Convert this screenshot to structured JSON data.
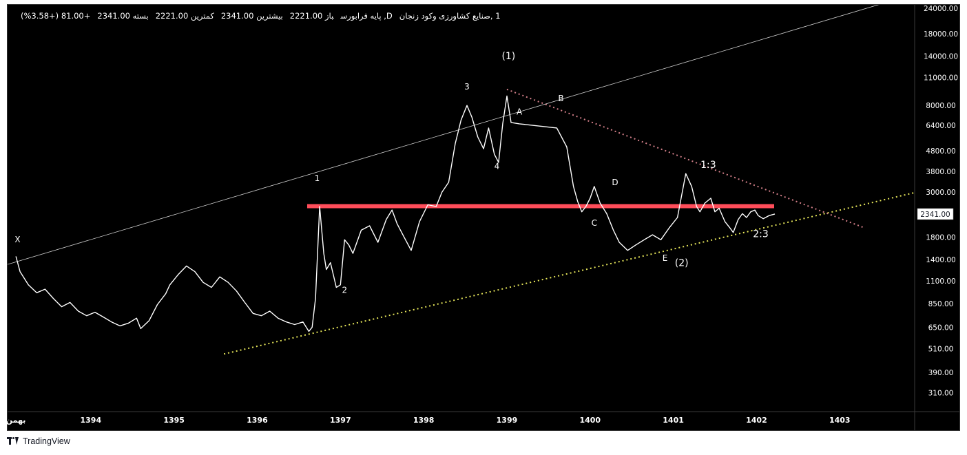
{
  "header": {
    "symbol": "1 ,صنایع کشاورزی وکود زنجان",
    "exchange": "D, پایه فرابورس",
    "open_label": "باز",
    "open": "2221.00",
    "high_label": "بیشترین",
    "high": "2341.00",
    "low_label": "کمترین",
    "low": "2221.00",
    "close_label": "بسته",
    "close": "2341.00",
    "change": "+81.00 (+3.58%)"
  },
  "branding": {
    "logo_text": "TradingView"
  },
  "colors": {
    "background": "#000000",
    "price": "#ffffff",
    "resistance": "#ff4d5a",
    "support_dotted": "#e6e65a",
    "downtrend_dotted": "#d4808a",
    "channel_line": "#cfcfcf"
  },
  "chart_data": {
    "type": "line",
    "scale": "log",
    "ylim": [
      250,
      25000
    ],
    "xlim": [
      1393.0,
      1403.9
    ],
    "y_ticks": [
      "24000.00",
      "18000.00",
      "14000.00",
      "11000.00",
      "8000.00",
      "6400.00",
      "4800.00",
      "3800.00",
      "3000.00",
      "2341.00",
      "1800.00",
      "1400.00",
      "1100.00",
      "850.00",
      "650.00",
      "510.00",
      "390.00",
      "310.00"
    ],
    "y_tick_values": [
      24000,
      18000,
      14000,
      11000,
      8000,
      6400,
      4800,
      3800,
      3000,
      2341,
      1800,
      1400,
      1100,
      850,
      650,
      510,
      390,
      310
    ],
    "last_price_label": "2341.00",
    "last_price": 2341,
    "x_ticks": [
      {
        "label": "بهمن",
        "x": 1393.1
      },
      {
        "label": "1394",
        "x": 1394
      },
      {
        "label": "1395",
        "x": 1395
      },
      {
        "label": "1396",
        "x": 1396
      },
      {
        "label": "1397",
        "x": 1397
      },
      {
        "label": "1398",
        "x": 1398
      },
      {
        "label": "1399",
        "x": 1399
      },
      {
        "label": "1400",
        "x": 1400
      },
      {
        "label": "1401",
        "x": 1401
      },
      {
        "label": "1402",
        "x": 1402
      },
      {
        "label": "1403",
        "x": 1403
      }
    ],
    "series": [
      {
        "x": [
          1393.1,
          1393.15,
          1393.25,
          1393.35,
          1393.45,
          1393.55,
          1393.65,
          1393.75,
          1393.85,
          1393.95,
          1394.05,
          1394.15,
          1394.25,
          1394.35,
          1394.45,
          1394.55,
          1394.6,
          1394.7,
          1394.8,
          1394.9,
          1394.95,
          1395.05,
          1395.15,
          1395.25,
          1395.35,
          1395.45,
          1395.55,
          1395.65,
          1395.75,
          1395.85,
          1395.95,
          1396.05,
          1396.15,
          1396.25,
          1396.35,
          1396.45,
          1396.55,
          1396.62,
          1396.66,
          1396.7,
          1396.75,
          1396.8,
          1396.83,
          1396.88,
          1396.95,
          1397.0,
          1397.05,
          1397.1,
          1397.15,
          1397.25,
          1397.35,
          1397.45,
          1397.55,
          1397.62,
          1397.68,
          1397.75,
          1397.85,
          1397.95,
          1398.05,
          1398.15,
          1398.22,
          1398.3,
          1398.38,
          1398.45,
          1398.52,
          1398.58,
          1398.65,
          1398.72,
          1398.78,
          1398.85,
          1398.9,
          1398.95,
          1399.0,
          1399.05,
          1399.15,
          1399.3,
          1399.45,
          1399.6,
          1399.72,
          1399.8,
          1399.85,
          1399.9,
          1399.95,
          1400.0,
          1400.05,
          1400.12,
          1400.2,
          1400.28,
          1400.35,
          1400.45,
          1400.55,
          1400.65,
          1400.75,
          1400.85,
          1400.95,
          1401.05,
          1401.15,
          1401.22,
          1401.28,
          1401.32,
          1401.38,
          1401.45,
          1401.5,
          1401.55,
          1401.62,
          1401.68,
          1401.72,
          1401.78,
          1401.83,
          1401.88,
          1401.93,
          1401.98,
          1402.02,
          1402.08,
          1402.15,
          1402.22
        ],
        "values": [
          1450,
          1220,
          1050,
          960,
          1000,
          900,
          820,
          860,
          780,
          740,
          770,
          730,
          690,
          660,
          680,
          720,
          640,
          700,
          840,
          950,
          1050,
          1180,
          1300,
          1220,
          1080,
          1020,
          1150,
          1080,
          980,
          860,
          760,
          740,
          780,
          720,
          690,
          670,
          690,
          620,
          650,
          900,
          2550,
          1500,
          1250,
          1350,
          1020,
          1050,
          1750,
          1650,
          1500,
          1950,
          2050,
          1700,
          2200,
          2450,
          2100,
          1850,
          1550,
          2150,
          2600,
          2550,
          3000,
          3350,
          5200,
          6800,
          8000,
          7000,
          5600,
          4900,
          6200,
          4600,
          4200,
          6500,
          8900,
          6600,
          6500,
          6400,
          6300,
          6200,
          5000,
          3200,
          2700,
          2400,
          2550,
          2800,
          3200,
          2650,
          2350,
          1950,
          1700,
          1550,
          1650,
          1750,
          1850,
          1750,
          2000,
          2250,
          3700,
          3200,
          2550,
          2400,
          2650,
          2800,
          2400,
          2500,
          2150,
          2000,
          1900,
          2200,
          2350,
          2250,
          2400,
          2450,
          2300,
          2221,
          2300,
          2341
        ]
      }
    ],
    "wave_labels": [
      {
        "text": "X",
        "x": 1393.12,
        "y": 1700
      },
      {
        "text": "1",
        "x": 1396.72,
        "y": 3400
      },
      {
        "text": "2",
        "x": 1397.05,
        "y": 960
      },
      {
        "text": "3",
        "x": 1398.52,
        "y": 9600
      },
      {
        "text": "4",
        "x": 1398.88,
        "y": 3900
      },
      {
        "text": "(1)",
        "x": 1399.02,
        "y": 13500
      },
      {
        "text": "A",
        "x": 1399.15,
        "y": 7200
      },
      {
        "text": "B",
        "x": 1399.65,
        "y": 8400
      },
      {
        "text": "C",
        "x": 1400.05,
        "y": 2050
      },
      {
        "text": "D",
        "x": 1400.3,
        "y": 3250
      },
      {
        "text": "E",
        "x": 1400.9,
        "y": 1380
      },
      {
        "text": "(2)",
        "x": 1401.1,
        "y": 1300
      },
      {
        "text": "1:3",
        "x": 1401.42,
        "y": 3950
      },
      {
        "text": "2:3",
        "x": 1402.05,
        "y": 1800
      }
    ],
    "lines": [
      {
        "kind": "channel",
        "style": "solid",
        "points": [
          [
            1392.5,
            1150
          ],
          [
            1403.6,
            26000
          ]
        ]
      },
      {
        "kind": "resistance",
        "style": "solid",
        "points": [
          [
            1396.6,
            2560
          ],
          [
            1404.3,
            2560
          ]
        ]
      },
      {
        "kind": "support",
        "style": "dotted",
        "points": [
          [
            1395.6,
            480
          ],
          [
            1405.0,
            3800
          ]
        ]
      },
      {
        "kind": "downtrend",
        "style": "dotted",
        "points": [
          [
            1399.0,
            9600
          ],
          [
            1403.3,
            2000
          ]
        ]
      }
    ],
    "grid": false,
    "legend": "none"
  }
}
